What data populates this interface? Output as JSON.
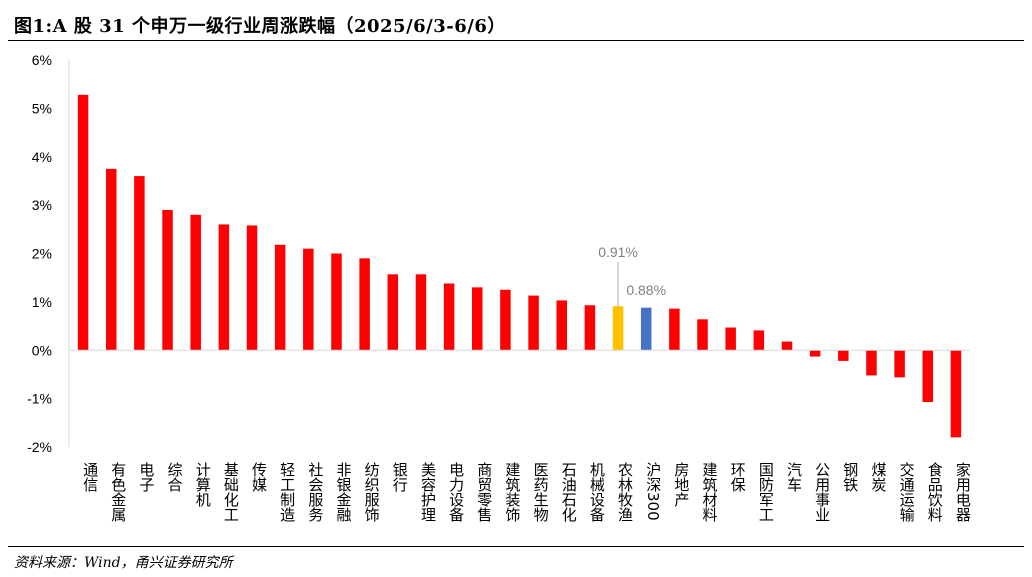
{
  "title": "图1:A 股 31 个申万一级行业周涨跌幅（2025/6/3-6/6）",
  "source": "资料来源：Wind，甬兴证券研究所",
  "colors": {
    "default": "#ff0000",
    "highlight": "#ffc000",
    "benchmark": "#4472c4",
    "axis": "#d9d9d9",
    "text": "#000000",
    "annotation": "#7f7f7f"
  },
  "chart_data": {
    "type": "bar",
    "ylim": [
      -2,
      6
    ],
    "yticks": [
      "6%",
      "5%",
      "4%",
      "3%",
      "2%",
      "1%",
      "0%",
      "-1%",
      "-2%"
    ],
    "ytick_values": [
      6,
      5,
      4,
      3,
      2,
      1,
      0,
      -1,
      -2
    ],
    "grid": false,
    "categories": [
      "通信",
      "有色金属",
      "电子",
      "综合",
      "计算机",
      "基础化工",
      "传媒",
      "轻工制造",
      "社会服务",
      "非银金融",
      "纺织服饰",
      "银行",
      "美容护理",
      "电力设备",
      "商贸零售",
      "建筑装饰",
      "医药生物",
      "石油石化",
      "机械设备",
      "农林牧渔",
      "沪深300",
      "房地产",
      "建筑材料",
      "环保",
      "国防军工",
      "汽车",
      "公用事业",
      "钢铁",
      "煤炭",
      "交通运输",
      "食品饮料",
      "家用电器"
    ],
    "values": [
      5.28,
      3.75,
      3.6,
      2.9,
      2.8,
      2.6,
      2.58,
      2.18,
      2.1,
      2.0,
      1.9,
      1.57,
      1.57,
      1.38,
      1.3,
      1.25,
      1.13,
      1.03,
      0.93,
      0.91,
      0.88,
      0.86,
      0.64,
      0.47,
      0.41,
      0.18,
      -0.13,
      -0.22,
      -0.52,
      -0.56,
      -1.07,
      -1.8
    ],
    "highlight": {
      "category": "农林牧渔",
      "label": "0.91%"
    },
    "benchmark": {
      "category": "沪深300",
      "label": "0.88%"
    }
  }
}
